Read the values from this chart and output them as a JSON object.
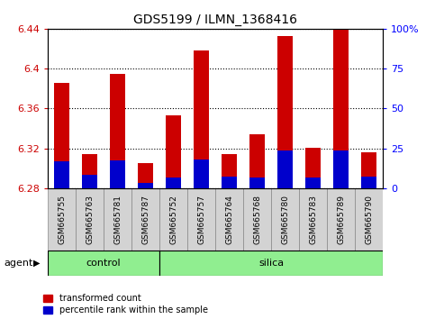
{
  "title": "GDS5199 / ILMN_1368416",
  "samples": [
    "GSM665755",
    "GSM665763",
    "GSM665781",
    "GSM665787",
    "GSM665752",
    "GSM665757",
    "GSM665764",
    "GSM665768",
    "GSM665780",
    "GSM665783",
    "GSM665789",
    "GSM665790"
  ],
  "groups": [
    "control",
    "control",
    "control",
    "control",
    "silica",
    "silica",
    "silica",
    "silica",
    "silica",
    "silica",
    "silica",
    "silica"
  ],
  "red_values": [
    6.386,
    6.314,
    6.395,
    6.305,
    6.353,
    6.418,
    6.314,
    6.334,
    6.433,
    6.321,
    6.441,
    6.316
  ],
  "blue_values": [
    6.307,
    6.293,
    6.308,
    6.285,
    6.291,
    6.309,
    6.292,
    6.291,
    6.318,
    6.291,
    6.318,
    6.292
  ],
  "base": 6.28,
  "ylim_left": [
    6.28,
    6.44
  ],
  "ylim_right": [
    0,
    100
  ],
  "yticks_left": [
    6.28,
    6.32,
    6.36,
    6.4,
    6.44
  ],
  "yticks_right": [
    0,
    25,
    50,
    75,
    100
  ],
  "ytick_labels_right": [
    "0",
    "25",
    "50",
    "75",
    "100%"
  ],
  "bar_width": 0.55,
  "red_color": "#cc0000",
  "blue_color": "#0000cc",
  "green_color": "#90ee90",
  "gray_color": "#d3d3d3",
  "agent_label": "agent",
  "control_label": "control",
  "silica_label": "silica",
  "legend_red": "transformed count",
  "legend_blue": "percentile rank within the sample"
}
